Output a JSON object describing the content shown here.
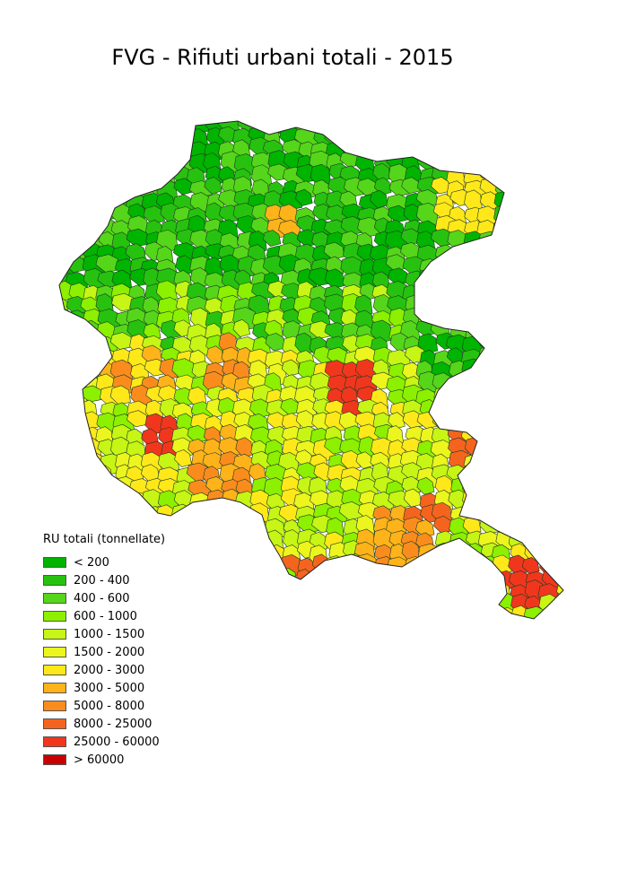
{
  "title": "FVG - Rifiuti urbani totali - 2015",
  "legend": {
    "title": "RU totali (tonnellate)",
    "classes": [
      {
        "label": "< 200",
        "color": "#00b400"
      },
      {
        "label": "200 - 400",
        "color": "#27c20f"
      },
      {
        "label": "400 - 600",
        "color": "#55d61a"
      },
      {
        "label": "600 - 1000",
        "color": "#8cf000"
      },
      {
        "label": "1000 - 1500",
        "color": "#c6f516"
      },
      {
        "label": "1500 - 2000",
        "color": "#ecf51e"
      },
      {
        "label": "2000 - 3000",
        "color": "#ffe81a"
      },
      {
        "label": "3000 - 5000",
        "color": "#ffb31a"
      },
      {
        "label": "5000 - 8000",
        "color": "#fa8c1e"
      },
      {
        "label": "8000 - 25000",
        "color": "#f5641e"
      },
      {
        "label": "25000 - 60000",
        "color": "#f0371e"
      },
      {
        "label": "> 60000",
        "color": "#c80000"
      }
    ]
  }
}
